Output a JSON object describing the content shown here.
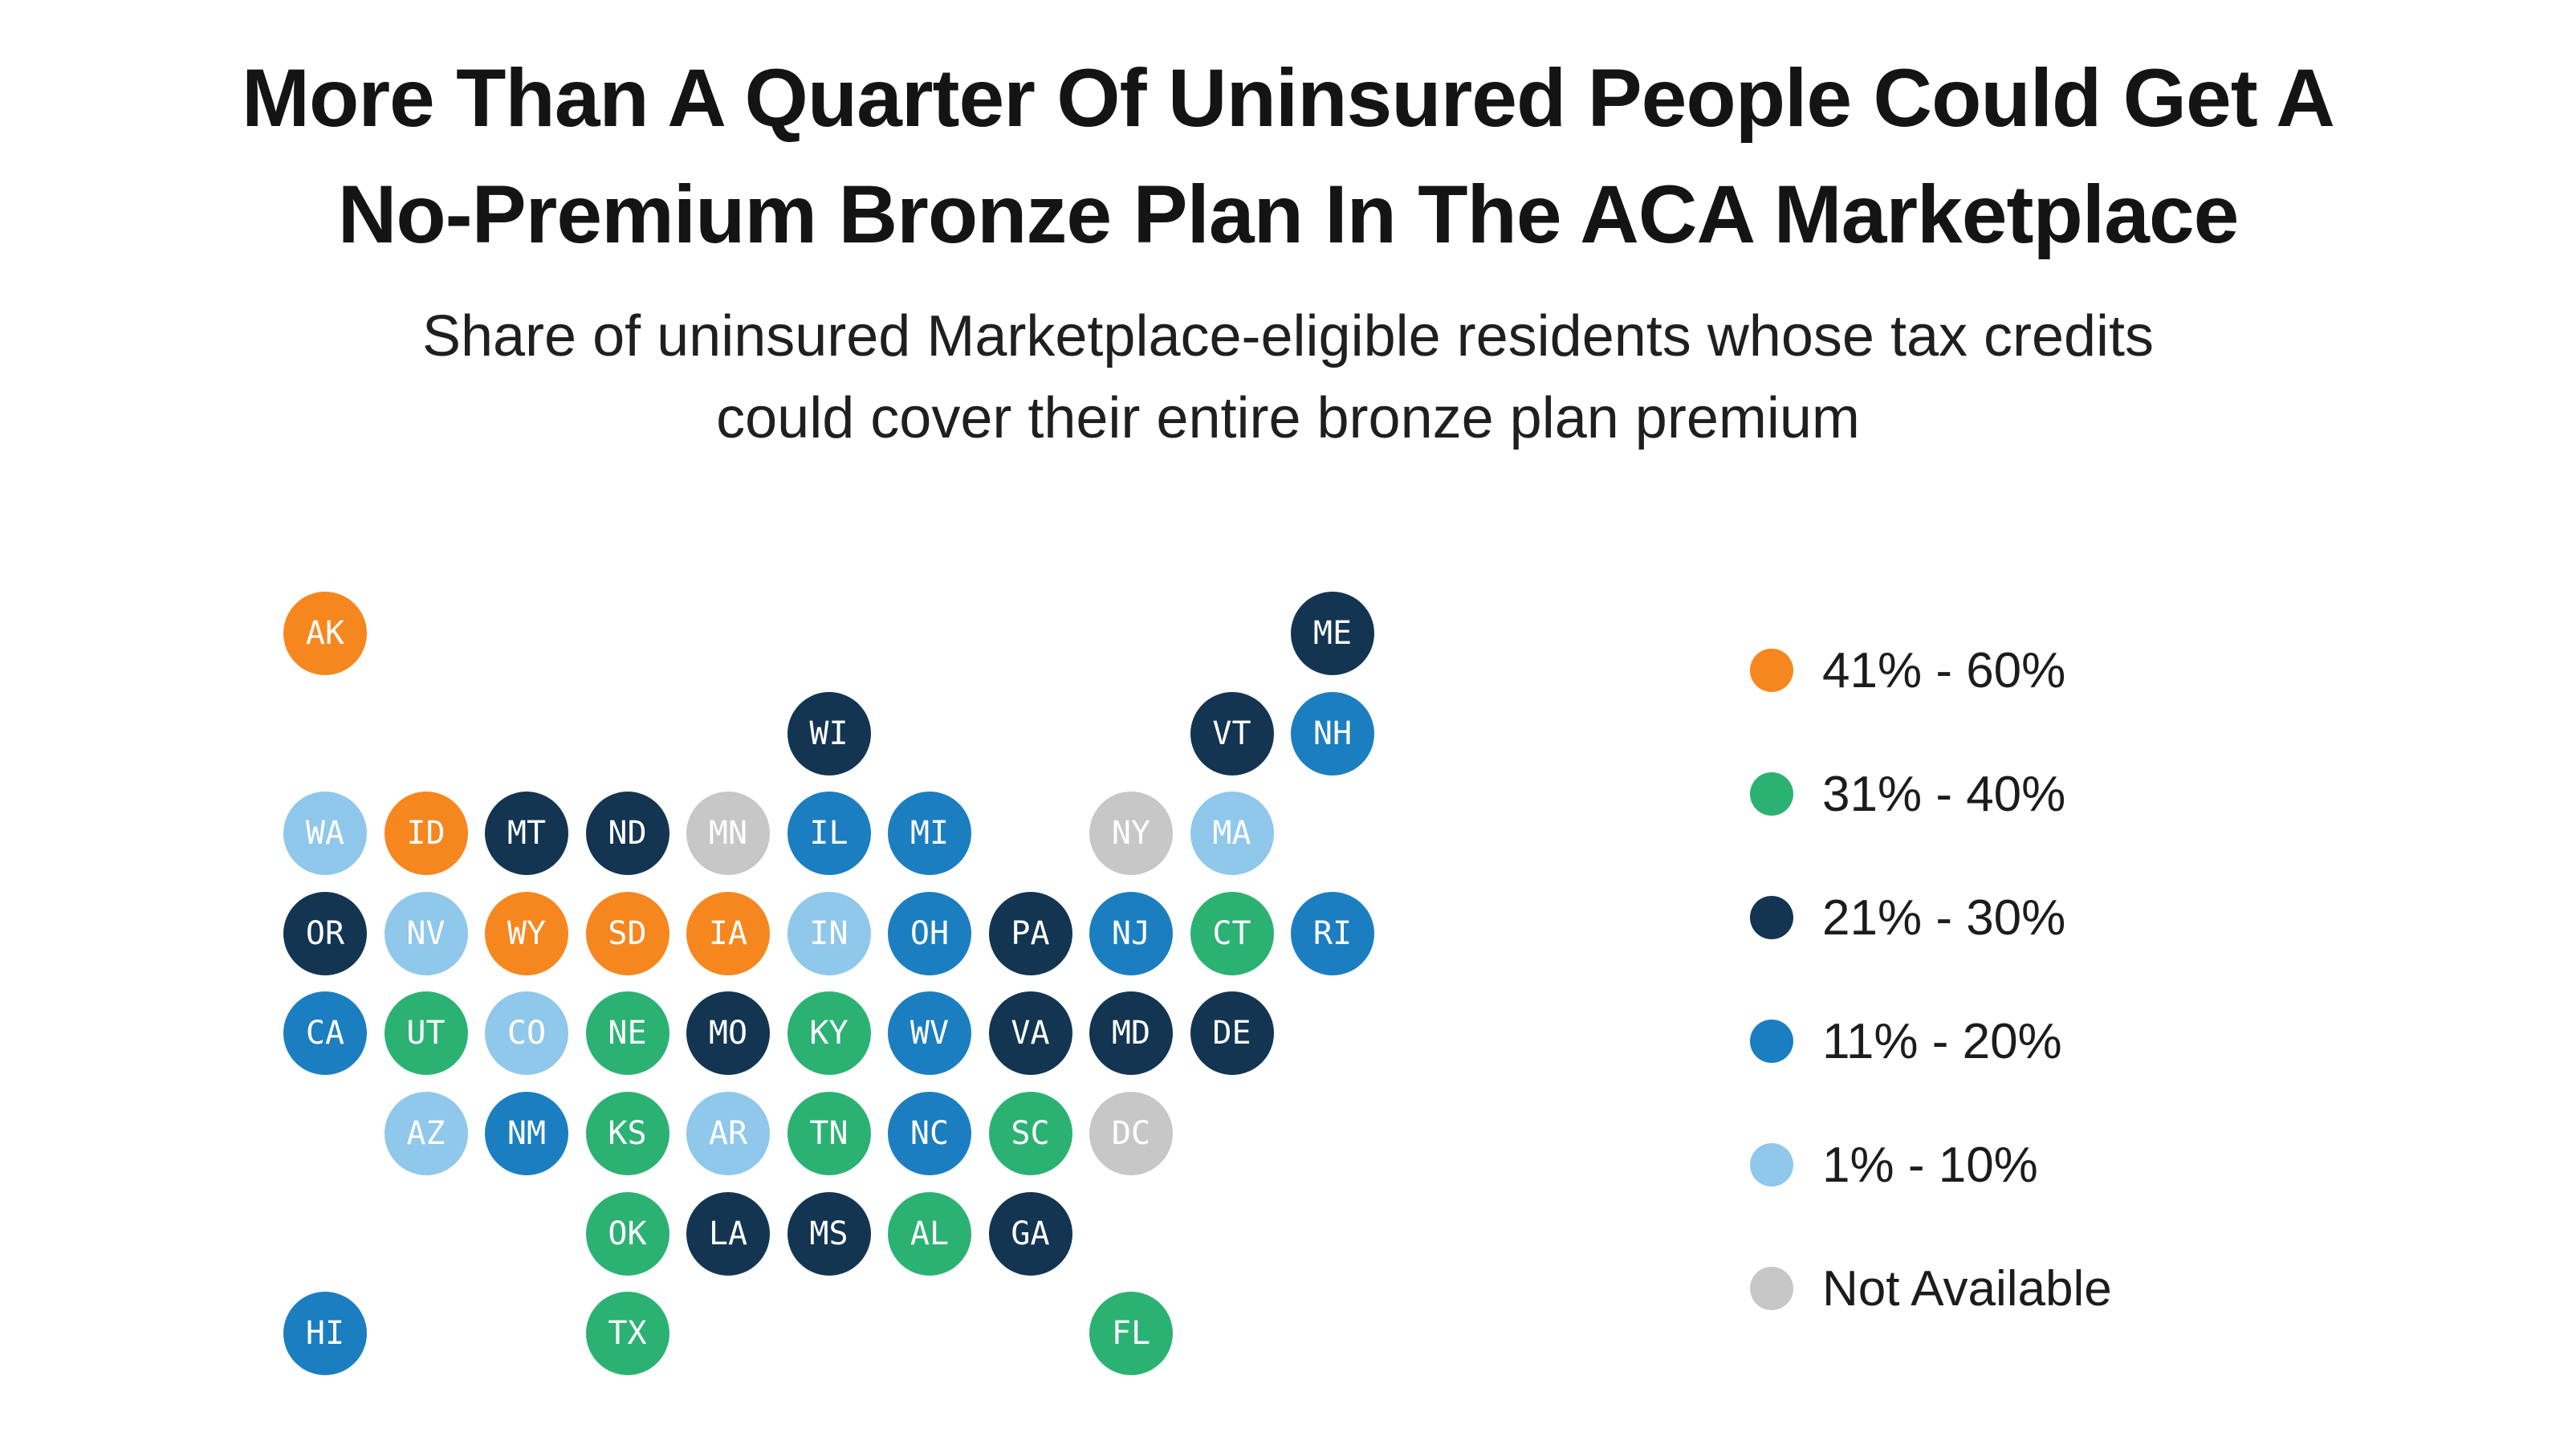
{
  "header": {
    "title_line1": "More Than A Quarter Of Uninsured People Could Get A",
    "title_line2": "No-Premium Bronze Plan In The ACA Marketplace",
    "subtitle_line1": "Share of uninsured Marketplace-eligible residents whose tax credits",
    "subtitle_line2": "could cover their entire bronze plan premium"
  },
  "chart_data": {
    "type": "heatmap",
    "subtype": "us-state-tile-grid-map",
    "title": "More Than A Quarter Of Uninsured People Could Get A No-Premium Bronze Plan In The ACA Marketplace",
    "subtitle": "Share of uninsured Marketplace-eligible residents whose tax credits could cover their entire bronze plan premium",
    "legend_position": "right",
    "legend": [
      {
        "key": "41-60",
        "label": "41% - 60%",
        "color": "#F6871F"
      },
      {
        "key": "31-40",
        "label": "31% - 40%",
        "color": "#2BB273"
      },
      {
        "key": "21-30",
        "label": "21% - 30%",
        "color": "#133552"
      },
      {
        "key": "11-20",
        "label": "11% - 20%",
        "color": "#1B7EC1"
      },
      {
        "key": "1-10",
        "label": "1% - 10%",
        "color": "#8FC8EA"
      },
      {
        "key": "na",
        "label": "Not Available",
        "color": "#C7C7C7"
      }
    ],
    "states": [
      {
        "abbr": "AK",
        "col": 0,
        "row": 0,
        "category": "41-60"
      },
      {
        "abbr": "ME",
        "col": 10,
        "row": 0,
        "category": "21-30"
      },
      {
        "abbr": "WI",
        "col": 5,
        "row": 1,
        "category": "21-30"
      },
      {
        "abbr": "VT",
        "col": 9,
        "row": 1,
        "category": "21-30"
      },
      {
        "abbr": "NH",
        "col": 10,
        "row": 1,
        "category": "11-20"
      },
      {
        "abbr": "WA",
        "col": 0,
        "row": 2,
        "category": "1-10"
      },
      {
        "abbr": "ID",
        "col": 1,
        "row": 2,
        "category": "41-60"
      },
      {
        "abbr": "MT",
        "col": 2,
        "row": 2,
        "category": "21-30"
      },
      {
        "abbr": "ND",
        "col": 3,
        "row": 2,
        "category": "21-30"
      },
      {
        "abbr": "MN",
        "col": 4,
        "row": 2,
        "category": "na"
      },
      {
        "abbr": "IL",
        "col": 5,
        "row": 2,
        "category": "11-20"
      },
      {
        "abbr": "MI",
        "col": 6,
        "row": 2,
        "category": "11-20"
      },
      {
        "abbr": "NY",
        "col": 8,
        "row": 2,
        "category": "na"
      },
      {
        "abbr": "MA",
        "col": 9,
        "row": 2,
        "category": "1-10"
      },
      {
        "abbr": "OR",
        "col": 0,
        "row": 3,
        "category": "21-30"
      },
      {
        "abbr": "NV",
        "col": 1,
        "row": 3,
        "category": "1-10"
      },
      {
        "abbr": "WY",
        "col": 2,
        "row": 3,
        "category": "41-60"
      },
      {
        "abbr": "SD",
        "col": 3,
        "row": 3,
        "category": "41-60"
      },
      {
        "abbr": "IA",
        "col": 4,
        "row": 3,
        "category": "41-60"
      },
      {
        "abbr": "IN",
        "col": 5,
        "row": 3,
        "category": "1-10"
      },
      {
        "abbr": "OH",
        "col": 6,
        "row": 3,
        "category": "11-20"
      },
      {
        "abbr": "PA",
        "col": 7,
        "row": 3,
        "category": "21-30"
      },
      {
        "abbr": "NJ",
        "col": 8,
        "row": 3,
        "category": "11-20"
      },
      {
        "abbr": "CT",
        "col": 9,
        "row": 3,
        "category": "31-40"
      },
      {
        "abbr": "RI",
        "col": 10,
        "row": 3,
        "category": "11-20"
      },
      {
        "abbr": "CA",
        "col": 0,
        "row": 4,
        "category": "11-20"
      },
      {
        "abbr": "UT",
        "col": 1,
        "row": 4,
        "category": "31-40"
      },
      {
        "abbr": "CO",
        "col": 2,
        "row": 4,
        "category": "1-10"
      },
      {
        "abbr": "NE",
        "col": 3,
        "row": 4,
        "category": "31-40"
      },
      {
        "abbr": "MO",
        "col": 4,
        "row": 4,
        "category": "21-30"
      },
      {
        "abbr": "KY",
        "col": 5,
        "row": 4,
        "category": "31-40"
      },
      {
        "abbr": "WV",
        "col": 6,
        "row": 4,
        "category": "11-20"
      },
      {
        "abbr": "VA",
        "col": 7,
        "row": 4,
        "category": "21-30"
      },
      {
        "abbr": "MD",
        "col": 8,
        "row": 4,
        "category": "21-30"
      },
      {
        "abbr": "DE",
        "col": 9,
        "row": 4,
        "category": "21-30"
      },
      {
        "abbr": "AZ",
        "col": 1,
        "row": 5,
        "category": "1-10"
      },
      {
        "abbr": "NM",
        "col": 2,
        "row": 5,
        "category": "11-20"
      },
      {
        "abbr": "KS",
        "col": 3,
        "row": 5,
        "category": "31-40"
      },
      {
        "abbr": "AR",
        "col": 4,
        "row": 5,
        "category": "1-10"
      },
      {
        "abbr": "TN",
        "col": 5,
        "row": 5,
        "category": "31-40"
      },
      {
        "abbr": "NC",
        "col": 6,
        "row": 5,
        "category": "11-20"
      },
      {
        "abbr": "SC",
        "col": 7,
        "row": 5,
        "category": "31-40"
      },
      {
        "abbr": "DC",
        "col": 8,
        "row": 5,
        "category": "na"
      },
      {
        "abbr": "OK",
        "col": 3,
        "row": 6,
        "category": "31-40"
      },
      {
        "abbr": "LA",
        "col": 4,
        "row": 6,
        "category": "21-30"
      },
      {
        "abbr": "MS",
        "col": 5,
        "row": 6,
        "category": "21-30"
      },
      {
        "abbr": "AL",
        "col": 6,
        "row": 6,
        "category": "31-40"
      },
      {
        "abbr": "GA",
        "col": 7,
        "row": 6,
        "category": "21-30"
      },
      {
        "abbr": "HI",
        "col": 0,
        "row": 7,
        "category": "11-20"
      },
      {
        "abbr": "TX",
        "col": 3,
        "row": 7,
        "category": "31-40"
      },
      {
        "abbr": "FL",
        "col": 8,
        "row": 7,
        "category": "31-40"
      }
    ]
  }
}
